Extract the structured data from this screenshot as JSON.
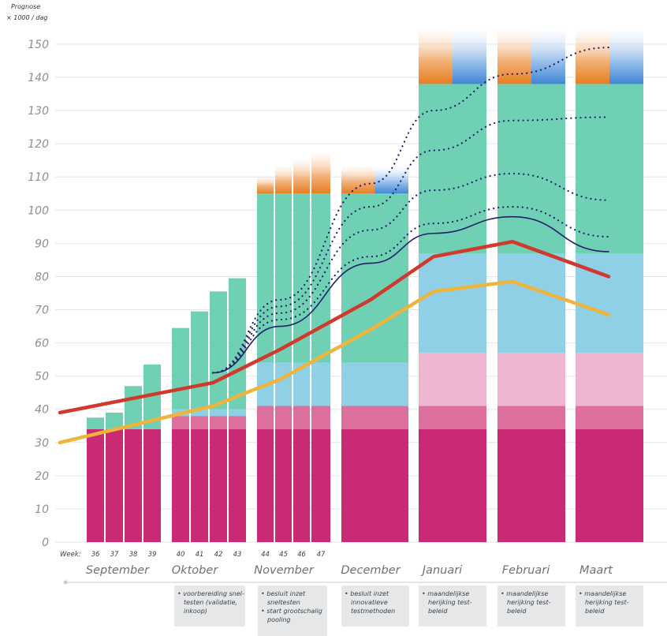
{
  "y_header": [
    "Prognose",
    "× 1000 / dag"
  ],
  "week_label": "Week:",
  "chart_data": {
    "type": "bar",
    "ylim": [
      0,
      150
    ],
    "yticks": [
      0,
      10,
      20,
      30,
      40,
      50,
      60,
      70,
      80,
      90,
      100,
      110,
      120,
      130,
      140,
      150
    ],
    "months": [
      "September",
      "Oktober",
      "November",
      "December",
      "Januari",
      "Februari",
      "Maart"
    ],
    "weeks": [
      "36",
      "37",
      "38",
      "39",
      "40",
      "41",
      "42",
      "43",
      "44",
      "45",
      "46",
      "47"
    ],
    "colors": {
      "magenta": "#c92a73",
      "pink": "#dd6f9f",
      "light_pink": "#eeb5d0",
      "light_blue": "#8fd0e6",
      "green": "#6fd0b4",
      "orange": "#e67e22",
      "blue": "#4d8fd6",
      "red_line": "#cf3a2d",
      "yellow_line": "#f0b43c",
      "navy_line": "#22206b"
    },
    "bars": [
      {
        "label": "36",
        "segments": [
          {
            "c": "magenta",
            "v": 34
          },
          {
            "c": "green",
            "v": 3.5
          }
        ]
      },
      {
        "label": "37",
        "segments": [
          {
            "c": "magenta",
            "v": 34
          },
          {
            "c": "green",
            "v": 5
          }
        ]
      },
      {
        "label": "38",
        "segments": [
          {
            "c": "magenta",
            "v": 34
          },
          {
            "c": "green",
            "v": 13
          }
        ]
      },
      {
        "label": "39",
        "segments": [
          {
            "c": "magenta",
            "v": 34
          },
          {
            "c": "green",
            "v": 19.5
          }
        ]
      },
      {
        "label": "40",
        "segments": [
          {
            "c": "magenta",
            "v": 34
          },
          {
            "c": "pink",
            "v": 4
          },
          {
            "c": "light_blue",
            "v": 2
          },
          {
            "c": "green",
            "v": 24.5
          }
        ]
      },
      {
        "label": "41",
        "segments": [
          {
            "c": "magenta",
            "v": 34
          },
          {
            "c": "pink",
            "v": 4
          },
          {
            "c": "light_blue",
            "v": 2
          },
          {
            "c": "green",
            "v": 29.5
          }
        ]
      },
      {
        "label": "42",
        "segments": [
          {
            "c": "magenta",
            "v": 34
          },
          {
            "c": "pink",
            "v": 4
          },
          {
            "c": "light_blue",
            "v": 2
          },
          {
            "c": "green",
            "v": 35.5
          }
        ]
      },
      {
        "label": "43",
        "segments": [
          {
            "c": "magenta",
            "v": 34
          },
          {
            "c": "pink",
            "v": 4
          },
          {
            "c": "light_blue",
            "v": 2
          },
          {
            "c": "green",
            "v": 39.5
          }
        ]
      },
      {
        "label": "44",
        "segments": [
          {
            "c": "magenta",
            "v": 34
          },
          {
            "c": "pink",
            "v": 7
          },
          {
            "c": "light_blue",
            "v": 13
          },
          {
            "c": "green",
            "v": 51
          },
          {
            "c": "orange",
            "v": 5
          }
        ]
      },
      {
        "label": "45",
        "segments": [
          {
            "c": "magenta",
            "v": 34
          },
          {
            "c": "pink",
            "v": 7
          },
          {
            "c": "light_blue",
            "v": 13
          },
          {
            "c": "green",
            "v": 51
          },
          {
            "c": "orange",
            "v": 8
          }
        ]
      },
      {
        "label": "46",
        "segments": [
          {
            "c": "magenta",
            "v": 34
          },
          {
            "c": "pink",
            "v": 7
          },
          {
            "c": "light_blue",
            "v": 13
          },
          {
            "c": "green",
            "v": 51
          },
          {
            "c": "orange",
            "v": 10
          }
        ]
      },
      {
        "label": "47",
        "segments": [
          {
            "c": "magenta",
            "v": 34
          },
          {
            "c": "pink",
            "v": 7
          },
          {
            "c": "light_blue",
            "v": 13
          },
          {
            "c": "green",
            "v": 51
          },
          {
            "c": "orange",
            "v": 12
          }
        ]
      },
      {
        "label": "December",
        "segments": [
          {
            "c": "magenta",
            "v": 34
          },
          {
            "c": "pink",
            "v": 7
          },
          {
            "c": "light_blue",
            "v": 13
          },
          {
            "c": "green",
            "v": 51
          },
          {
            "c": "orange_blue",
            "v": 8
          }
        ]
      },
      {
        "label": "Januari",
        "segments": [
          {
            "c": "magenta",
            "v": 34
          },
          {
            "c": "pink",
            "v": 7
          },
          {
            "c": "light_pink",
            "v": 16
          },
          {
            "c": "light_blue",
            "v": 30
          },
          {
            "c": "green",
            "v": 51
          },
          {
            "c": "orange_blue",
            "v": 16
          }
        ]
      },
      {
        "label": "Februari",
        "segments": [
          {
            "c": "magenta",
            "v": 34
          },
          {
            "c": "pink",
            "v": 7
          },
          {
            "c": "light_pink",
            "v": 16
          },
          {
            "c": "light_blue",
            "v": 30
          },
          {
            "c": "green",
            "v": 51
          },
          {
            "c": "orange_blue",
            "v": 16
          }
        ]
      },
      {
        "label": "Maart",
        "segments": [
          {
            "c": "magenta",
            "v": 34
          },
          {
            "c": "pink",
            "v": 7
          },
          {
            "c": "light_pink",
            "v": 16
          },
          {
            "c": "light_blue",
            "v": 30
          },
          {
            "c": "green",
            "v": 51
          },
          {
            "c": "orange_blue",
            "v": 16
          }
        ]
      }
    ],
    "lines": [
      {
        "c": "red_line",
        "style": "solid",
        "points": [
          [
            0,
            39
          ],
          [
            4,
            48
          ],
          [
            8,
            58
          ],
          [
            12,
            73
          ],
          [
            13,
            86
          ],
          [
            14,
            90.5
          ],
          [
            15,
            80
          ]
        ]
      },
      {
        "c": "yellow_line",
        "style": "solid",
        "points": [
          [
            0,
            30
          ],
          [
            4,
            41
          ],
          [
            8,
            49
          ],
          [
            12,
            64
          ],
          [
            13,
            75.5
          ],
          [
            14,
            78.5
          ],
          [
            15,
            68.5
          ]
        ]
      },
      {
        "c": "navy_line",
        "style": "solid",
        "points": [
          [
            4,
            51
          ],
          [
            8,
            65
          ],
          [
            12,
            84
          ],
          [
            13,
            93
          ],
          [
            14,
            98
          ],
          [
            15,
            87.5
          ]
        ]
      },
      {
        "c": "navy_line",
        "style": "dotted",
        "points": [
          [
            4,
            51
          ],
          [
            8,
            67
          ],
          [
            12,
            86
          ],
          [
            13,
            96
          ],
          [
            14,
            101
          ],
          [
            15,
            92
          ]
        ]
      },
      {
        "c": "navy_line",
        "style": "dotted",
        "points": [
          [
            4,
            51
          ],
          [
            8,
            69
          ],
          [
            12,
            94
          ],
          [
            13,
            106
          ],
          [
            14,
            111
          ],
          [
            15,
            103
          ]
        ]
      },
      {
        "c": "navy_line",
        "style": "dotted",
        "points": [
          [
            4,
            51
          ],
          [
            8,
            71
          ],
          [
            12,
            101
          ],
          [
            13,
            118
          ],
          [
            14,
            127
          ],
          [
            15,
            128
          ]
        ]
      },
      {
        "c": "navy_line",
        "style": "dotted",
        "points": [
          [
            4,
            51
          ],
          [
            8,
            73
          ],
          [
            12,
            108
          ],
          [
            13,
            130
          ],
          [
            14,
            141
          ],
          [
            15,
            149
          ]
        ]
      }
    ]
  },
  "notes": [
    {
      "lines": [
        "• voorbereiding snel-",
        "testen (validatie,",
        "inkoop)"
      ]
    },
    {
      "lines": [
        "• besluit inzet",
        "snel­testen",
        "• start grootschalig",
        "pooling"
      ]
    },
    {
      "lines": [
        "• besluit inzet",
        "innovatieve",
        "testmethoden"
      ]
    },
    {
      "lines": [
        "• maandelijkse",
        "herijking test-",
        "beleid"
      ]
    },
    {
      "lines": [
        "• maandelijkse",
        "herijking test-",
        "beleid"
      ]
    },
    {
      "lines": [
        "• maandelijkse",
        "herijking test-",
        "beleid"
      ]
    }
  ]
}
